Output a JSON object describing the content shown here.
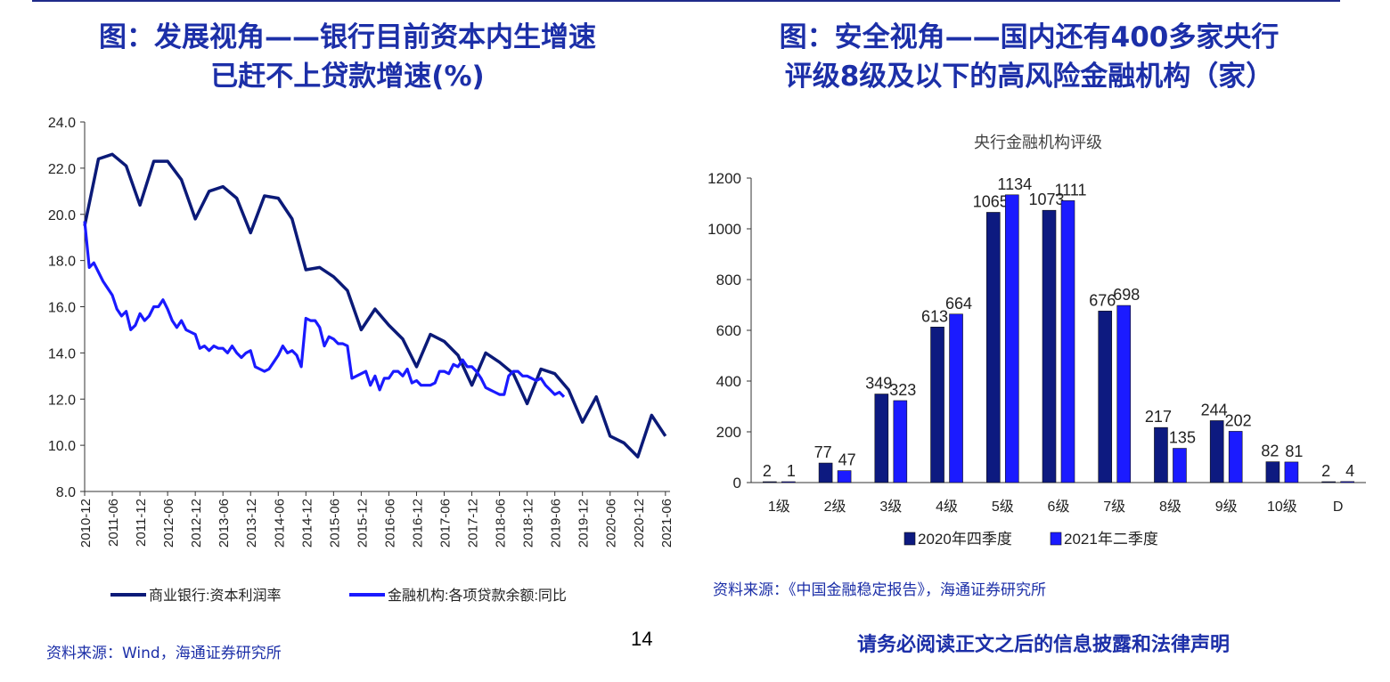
{
  "left_panel": {
    "title_line1": "图：发展视角——银行目前资本内生增速",
    "title_line2": "已赶不上贷款增速(%)",
    "source": "资料来源：Wind，海通证券研究所"
  },
  "right_panel": {
    "title_line1": "图：安全视角——国内还有400多家央行",
    "title_line2": "评级8级及以下的高风险金融机构（家）",
    "source": "资料来源：《中国金融稳定报告》，海通证券研究所"
  },
  "footer": {
    "page_number": "14",
    "disclaimer": "请务必阅读正文之后的信息披露和法律声明"
  },
  "chart_data": [
    {
      "type": "line",
      "title": "",
      "ylim": [
        8.0,
        24.0
      ],
      "yticks": [
        "8.0",
        "10.0",
        "12.0",
        "14.0",
        "16.0",
        "18.0",
        "20.0",
        "22.0",
        "24.0"
      ],
      "xticks": [
        "2010-12",
        "2011-06",
        "2011-12",
        "2012-06",
        "2012-12",
        "2013-06",
        "2013-12",
        "2014-06",
        "2014-12",
        "2015-06",
        "2015-12",
        "2016-06",
        "2016-12",
        "2017-06",
        "2017-12",
        "2018-06",
        "2018-12",
        "2019-06",
        "2019-12",
        "2020-06",
        "2020-12",
        "2021-06"
      ],
      "legend_position": "bottom",
      "series": [
        {
          "name": "商业银行:资本利润率",
          "color": "#0b1a78",
          "freq": "quarterly",
          "points": [
            [
              "2010-12",
              19.5
            ],
            [
              "2011-03",
              22.4
            ],
            [
              "2011-06",
              22.6
            ],
            [
              "2011-09",
              22.1
            ],
            [
              "2011-12",
              20.4
            ],
            [
              "2012-03",
              22.3
            ],
            [
              "2012-06",
              22.3
            ],
            [
              "2012-09",
              21.5
            ],
            [
              "2012-12",
              19.8
            ],
            [
              "2013-03",
              21.0
            ],
            [
              "2013-06",
              21.2
            ],
            [
              "2013-09",
              20.7
            ],
            [
              "2013-12",
              19.2
            ],
            [
              "2014-03",
              20.8
            ],
            [
              "2014-06",
              20.7
            ],
            [
              "2014-09",
              19.8
            ],
            [
              "2014-12",
              17.6
            ],
            [
              "2015-03",
              17.7
            ],
            [
              "2015-06",
              17.3
            ],
            [
              "2015-09",
              16.7
            ],
            [
              "2015-12",
              15.0
            ],
            [
              "2016-03",
              15.9
            ],
            [
              "2016-06",
              15.2
            ],
            [
              "2016-09",
              14.6
            ],
            [
              "2016-12",
              13.4
            ],
            [
              "2017-03",
              14.8
            ],
            [
              "2017-06",
              14.5
            ],
            [
              "2017-09",
              13.9
            ],
            [
              "2017-12",
              12.6
            ],
            [
              "2018-03",
              14.0
            ],
            [
              "2018-06",
              13.6
            ],
            [
              "2018-09",
              13.1
            ],
            [
              "2018-12",
              11.8
            ],
            [
              "2019-03",
              13.3
            ],
            [
              "2019-06",
              13.1
            ],
            [
              "2019-09",
              12.4
            ],
            [
              "2019-12",
              11.0
            ],
            [
              "2020-03",
              12.1
            ],
            [
              "2020-06",
              10.4
            ],
            [
              "2020-09",
              10.1
            ],
            [
              "2020-12",
              9.5
            ],
            [
              "2021-03",
              11.3
            ],
            [
              "2021-06",
              10.4
            ]
          ]
        },
        {
          "name": "金融机构:各项贷款余额:同比",
          "color": "#1a1aff",
          "freq": "monthly",
          "values": [
            19.7,
            17.7,
            17.9,
            17.5,
            17.1,
            16.8,
            16.5,
            15.9,
            15.6,
            15.8,
            15.0,
            15.2,
            15.7,
            15.4,
            15.6,
            16.0,
            16.0,
            16.3,
            15.9,
            15.4,
            15.1,
            15.4,
            15.0,
            14.9,
            14.8,
            14.2,
            14.3,
            14.1,
            14.3,
            14.2,
            14.2,
            14.0,
            14.3,
            14.0,
            13.8,
            14.0,
            14.1,
            13.4,
            13.3,
            13.2,
            13.3,
            13.6,
            13.9,
            14.3,
            14.0,
            14.1,
            13.9,
            13.4,
            15.5,
            15.4,
            15.4,
            15.1,
            14.3,
            14.7,
            14.6,
            14.4,
            14.4,
            14.3,
            12.9,
            13.0,
            13.1,
            13.2,
            12.6,
            13.0,
            12.4,
            12.9,
            12.9,
            13.2,
            13.2,
            13.0,
            13.3,
            12.7,
            12.8,
            12.6,
            12.6,
            12.6,
            12.7,
            13.2,
            13.2,
            13.1,
            13.5,
            13.4,
            13.7,
            13.4,
            13.4,
            13.2,
            12.9,
            12.5,
            12.4,
            12.3,
            12.2,
            12.2,
            13.0,
            13.2,
            13.2,
            13.0,
            13.0,
            12.9,
            12.8,
            12.9,
            12.6,
            12.4,
            12.2,
            12.3,
            12.1
          ]
        }
      ]
    },
    {
      "type": "bar",
      "title": "央行金融机构评级",
      "categories": [
        "1级",
        "2级",
        "3级",
        "4级",
        "5级",
        "6级",
        "7级",
        "8级",
        "9级",
        "10级",
        "D"
      ],
      "ylim": [
        0,
        1200
      ],
      "yticks": [
        "0",
        "200",
        "400",
        "600",
        "800",
        "1000",
        "1200"
      ],
      "legend_position": "bottom",
      "series": [
        {
          "name": "2020年四季度",
          "color": "#0d1a80",
          "values": [
            2,
            77,
            349,
            613,
            1065,
            1073,
            676,
            217,
            244,
            82,
            2
          ]
        },
        {
          "name": "2021年二季度",
          "color": "#1b1bff",
          "values": [
            1,
            47,
            323,
            664,
            1134,
            1111,
            698,
            135,
            202,
            81,
            4
          ]
        }
      ]
    }
  ]
}
